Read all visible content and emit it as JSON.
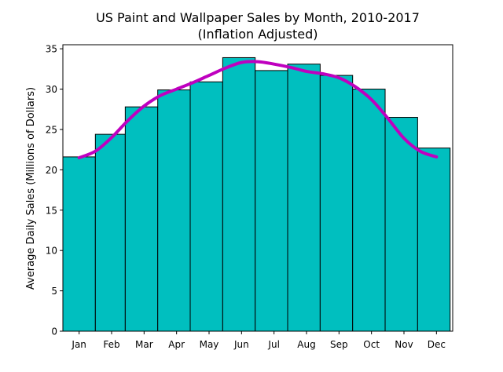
{
  "chart_data": {
    "type": "bar",
    "title": "US Paint and Wallpaper Sales by Month, 2010-2017",
    "subtitle": "(Inflation Adjusted)",
    "xlabel": "",
    "ylabel": "Average Daily Sales (Millions of Dollars)",
    "categories": [
      "Jan",
      "Feb",
      "Mar",
      "Apr",
      "May",
      "Jun",
      "Jul",
      "Aug",
      "Sep",
      "Oct",
      "Nov",
      "Dec"
    ],
    "values": [
      21.6,
      24.4,
      27.8,
      29.9,
      30.9,
      33.9,
      32.3,
      33.1,
      31.7,
      30.0,
      26.5,
      22.7
    ],
    "bar_widths": [
      1,
      0.92,
      1,
      1,
      1,
      1,
      1,
      1,
      1,
      1,
      1,
      1
    ],
    "ylim": [
      0,
      35.5
    ],
    "yticks": [
      0,
      5,
      10,
      15,
      20,
      25,
      30,
      35
    ],
    "grid": false,
    "bar_color": "#00bfbf",
    "bar_edge_color": "#000000",
    "smooth_line": {
      "color": "#bf00bf",
      "points": [
        [
          0,
          21.5
        ],
        [
          0.5,
          22.3
        ],
        [
          1,
          24.0
        ],
        [
          1.5,
          26.1
        ],
        [
          2,
          27.9
        ],
        [
          2.5,
          29.2
        ],
        [
          3,
          30.0
        ],
        [
          3.5,
          30.8
        ],
        [
          4,
          31.7
        ],
        [
          4.5,
          32.6
        ],
        [
          5,
          33.3
        ],
        [
          5.5,
          33.4
        ],
        [
          6,
          33.1
        ],
        [
          6.5,
          32.7
        ],
        [
          7,
          32.2
        ],
        [
          7.5,
          31.9
        ],
        [
          8,
          31.4
        ],
        [
          8.5,
          30.3
        ],
        [
          9,
          28.7
        ],
        [
          9.5,
          26.4
        ],
        [
          10,
          23.9
        ],
        [
          10.5,
          22.3
        ],
        [
          11,
          21.6
        ]
      ]
    }
  }
}
